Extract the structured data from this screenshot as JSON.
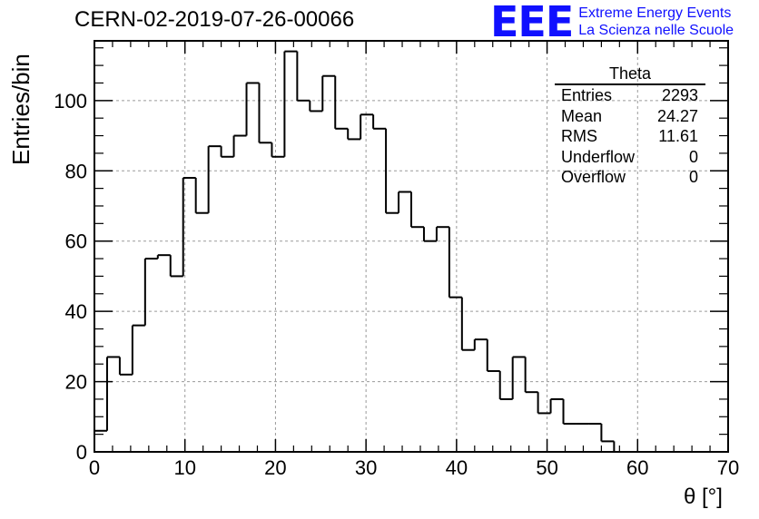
{
  "header": {
    "title": "CERN-02-2019-07-26-00066",
    "logo_mark": "EEE",
    "logo_line1": "Extreme Energy Events",
    "logo_line2": "La Scienza nelle Scuole"
  },
  "stats_box": {
    "title": "Theta",
    "rows": [
      {
        "label": "Entries",
        "value": "2293"
      },
      {
        "label": "Mean",
        "value": "24.27"
      },
      {
        "label": "RMS",
        "value": "11.61"
      },
      {
        "label": "Underflow",
        "value": "0"
      },
      {
        "label": "Overflow",
        "value": "0"
      }
    ]
  },
  "colors": {
    "line": "#000000",
    "grid": "#9a9a9a",
    "logo": "#1010ff"
  },
  "chart_data": {
    "type": "histogram",
    "title": "CERN-02-2019-07-26-00066",
    "xlabel": "θ [°]",
    "ylabel": "Entries/bin",
    "xlim": [
      0,
      70
    ],
    "ylim": [
      0,
      117
    ],
    "grid": true,
    "bin_edges_start": 0,
    "bin_width": 1.4,
    "values": [
      6,
      27,
      22,
      36,
      55,
      56,
      50,
      78,
      68,
      87,
      84,
      90,
      105,
      88,
      84,
      114,
      100,
      97,
      107,
      92,
      89,
      96,
      92,
      68,
      74,
      64,
      60,
      64,
      44,
      29,
      32,
      23,
      15,
      27,
      17,
      11,
      15,
      8,
      8,
      8,
      3,
      0,
      0,
      0,
      0,
      0,
      0,
      0,
      0,
      0
    ],
    "xticks": [
      "0",
      "10",
      "20",
      "30",
      "40",
      "50",
      "60",
      "70"
    ],
    "yticks": [
      "0",
      "20",
      "40",
      "60",
      "80",
      "100"
    ]
  }
}
